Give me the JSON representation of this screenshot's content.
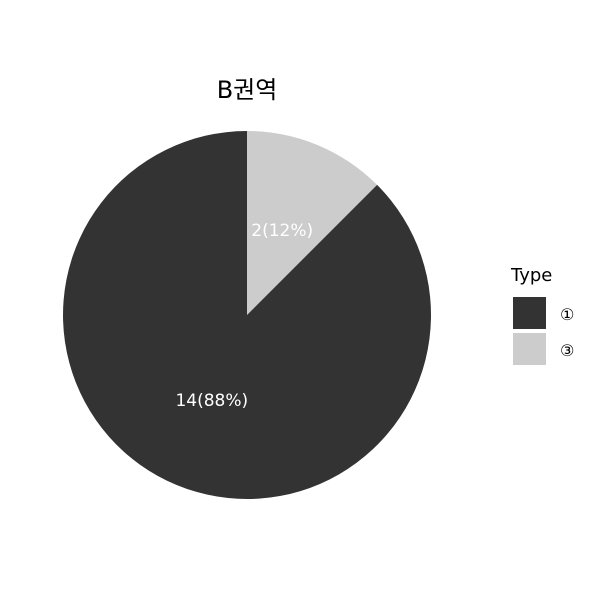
{
  "chart_data": {
    "type": "pie",
    "title": "B권역",
    "start": "top",
    "direction": "clockwise",
    "slices": [
      {
        "label": "③",
        "value": 2,
        "percent": 12,
        "display": "2(12%)",
        "color": "#cccccc"
      },
      {
        "label": "①",
        "value": 14,
        "percent": 88,
        "display": "14(88%)",
        "color": "#333333"
      }
    ],
    "legend": {
      "title": "Type",
      "placement": "right",
      "items": [
        {
          "label": "①",
          "color": "#333333"
        },
        {
          "label": "③",
          "color": "#cccccc"
        }
      ]
    }
  }
}
